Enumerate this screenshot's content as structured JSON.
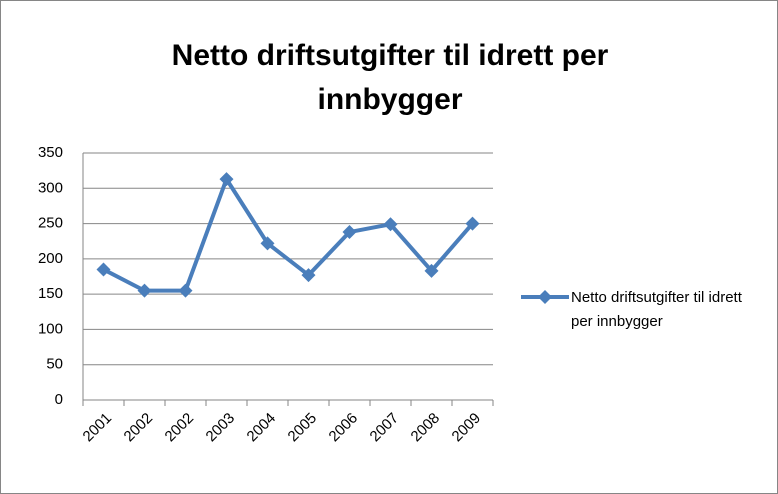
{
  "chart_data": {
    "type": "line",
    "title": "Netto driftsutgifter til idrett per innbygger",
    "categories": [
      "2001",
      "2002",
      "2002",
      "2003",
      "2004",
      "2005",
      "2006",
      "2007",
      "2008",
      "2009"
    ],
    "series": [
      {
        "name": "Netto driftsutgifter til idrett per innbygger",
        "color": "#4a7ebb",
        "values": [
          185,
          155,
          155,
          313,
          222,
          177,
          238,
          249,
          183,
          250
        ]
      }
    ],
    "ylim": [
      0,
      350
    ],
    "yticks": [
      0,
      50,
      100,
      150,
      200,
      250,
      300,
      350
    ],
    "grid": true,
    "legend": "right"
  }
}
